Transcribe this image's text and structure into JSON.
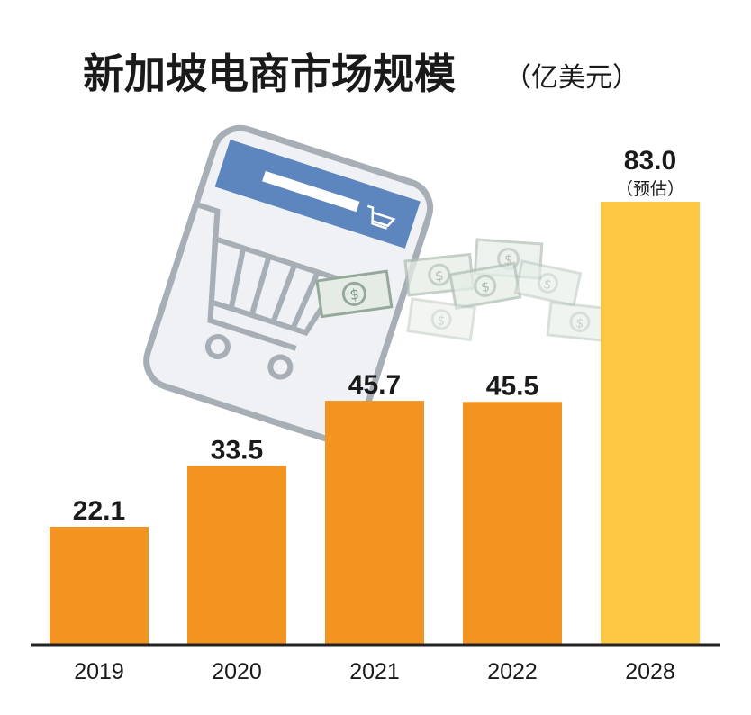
{
  "chart_data": {
    "type": "bar",
    "title": "新加坡电商市场规模",
    "subtitle": "（亿美元）",
    "categories": [
      "2019",
      "2020",
      "2021",
      "2022",
      "2028"
    ],
    "values": [
      22.1,
      33.5,
      45.7,
      45.5,
      83.0
    ],
    "value_labels": [
      "22.1",
      "33.5",
      "45.7",
      "45.5",
      "83.0"
    ],
    "annotations": [
      {
        "category": "2028",
        "text": "（预估）"
      }
    ],
    "ylim": [
      0,
      83.0
    ],
    "grid": false,
    "legend": "none",
    "xlabel": "",
    "ylabel": ""
  },
  "colors": {
    "bar_actual": "#f39320",
    "bar_estimate": "#fcc843",
    "baseline": "#222222",
    "text": "#1a1a1a"
  },
  "decoration": {
    "icons": [
      "smartphone-icon",
      "shopping-cart-icon",
      "dollar-bill-icon"
    ]
  }
}
